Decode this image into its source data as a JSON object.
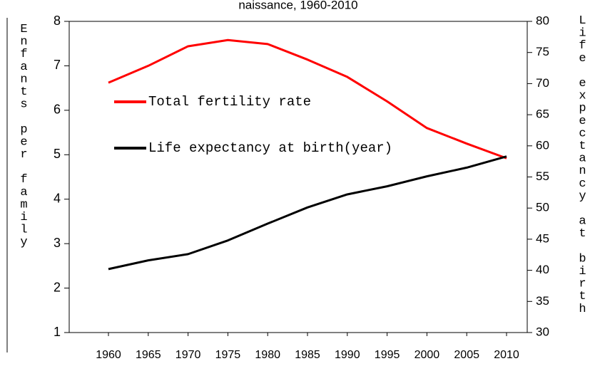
{
  "chart_data": {
    "type": "line",
    "title": "naissance, 1960-2010",
    "y_label": "Enfants per family",
    "y2_label": "Life expectancy at birth",
    "categories": [
      "1960",
      "1965",
      "1970",
      "1975",
      "1980",
      "1985",
      "1990",
      "1995",
      "2000",
      "2005",
      "2010"
    ],
    "series": [
      {
        "name": "Total fertility rate",
        "color": "#ff0000",
        "values": [
          6.62,
          7.0,
          7.44,
          7.58,
          7.49,
          7.14,
          6.75,
          6.2,
          5.6,
          5.25,
          4.92
        ]
      },
      {
        "name": "Life expectancy at birth(year)",
        "color": "#000000",
        "axis": "y2",
        "values": [
          40.2,
          41.6,
          42.6,
          44.8,
          47.5,
          50.1,
          52.2,
          53.5,
          55.1,
          56.5,
          58.3
        ]
      }
    ],
    "ylim": [
      1,
      8
    ],
    "yticks": [
      1,
      2,
      3,
      4,
      5,
      6,
      7,
      8
    ],
    "y2lim": [
      30,
      80
    ],
    "y2ticks": [
      30,
      35,
      40,
      45,
      50,
      55,
      60,
      65,
      70,
      75,
      80
    ],
    "grid": false
  }
}
